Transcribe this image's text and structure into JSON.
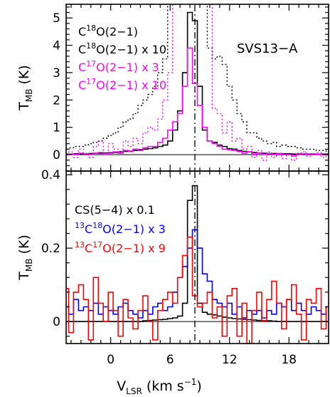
{
  "figure": {
    "xlabel": {
      "main": "V",
      "sub": "LSR",
      "units": " (km s",
      "sup": "−1",
      "close": ")"
    },
    "object_label": "SVS13−A",
    "x_ticks": [
      "0",
      "6",
      "12",
      "18"
    ]
  },
  "chart_data": [
    {
      "type": "line",
      "panel": "top",
      "ylabel": {
        "main": "T",
        "sub": "MB",
        "units": " (K)"
      },
      "xlim": [
        -4.5,
        22
      ],
      "ylim": [
        -0.6,
        5.5
      ],
      "y_ticks": [
        "0",
        "1",
        "2",
        "3",
        "4",
        "5"
      ],
      "reference_velocity": 8.5,
      "legend": [
        {
          "parts": [
            {
              "t": "C"
            },
            {
              "t": "18",
              "sup": true
            },
            {
              "t": "O(2−1)"
            }
          ],
          "color": "#000000"
        },
        {
          "parts": [
            {
              "t": "C"
            },
            {
              "t": "18",
              "sup": true
            },
            {
              "t": "O(2−1) x 10"
            }
          ],
          "color": "#000000"
        },
        {
          "parts": [
            {
              "t": "C"
            },
            {
              "t": "17",
              "sup": true
            },
            {
              "t": "O(2−1) x 3"
            }
          ],
          "color": "#ff00ff"
        },
        {
          "parts": [
            {
              "t": "C"
            },
            {
              "t": "17",
              "sup": true
            },
            {
              "t": "O(2−1) x 10"
            }
          ],
          "color": "#ff00ff"
        }
      ],
      "series": [
        {
          "name": "C18O(2-1)",
          "color": "#000000",
          "dash": "none",
          "step": 0.5,
          "x": [
            -4.5,
            -4,
            -3.5,
            -3,
            -2.5,
            -2,
            -1.5,
            -1,
            -0.5,
            0,
            0.5,
            1,
            1.5,
            2,
            2.5,
            3,
            3.5,
            4,
            4.5,
            5,
            5.5,
            6,
            6.5,
            7,
            7.5,
            8,
            8.5,
            9,
            9.5,
            10,
            10.5,
            11,
            11.5,
            12,
            12.5,
            13,
            13.5,
            14,
            14.5,
            15,
            15.5,
            16,
            16.5,
            17,
            17.5,
            18,
            18.5,
            19,
            19.5,
            20,
            20.5,
            21,
            21.5,
            22
          ],
          "y": [
            0.02,
            0.02,
            0.03,
            0.03,
            0.03,
            0.04,
            0.05,
            0.05,
            0.06,
            0.07,
            0.08,
            0.1,
            0.12,
            0.13,
            0.15,
            0.18,
            0.2,
            0.22,
            0.25,
            0.3,
            0.35,
            0.5,
            0.9,
            1.6,
            3.0,
            5.2,
            4.9,
            2.5,
            0.9,
            0.5,
            0.45,
            0.35,
            0.3,
            0.22,
            0.2,
            0.15,
            0.12,
            0.1,
            0.08,
            0.06,
            0.05,
            0.04,
            0.04,
            0.03,
            0.03,
            0.03,
            0.02,
            0.02,
            0.02,
            0.02,
            0.02,
            0.02,
            0.02,
            0.02
          ]
        },
        {
          "name": "C18O(2-1) x 10",
          "color": "#000000",
          "dash": "2 3",
          "step": 0.5,
          "x": [
            -4.5,
            -4,
            -3.5,
            -3,
            -2.5,
            -2,
            -1.5,
            -1,
            -0.5,
            0,
            0.5,
            1,
            1.5,
            2,
            2.5,
            3,
            3.5,
            4,
            4.5,
            5,
            5.5,
            6,
            6.5,
            7,
            7.5,
            8,
            8.5,
            9,
            9.5,
            10,
            10.5,
            11,
            11.5,
            12,
            12.5,
            13,
            13.5,
            14,
            14.5,
            15,
            15.5,
            16,
            16.5,
            17,
            17.5,
            18,
            18.5,
            19,
            19.5,
            20,
            20.5,
            21,
            21.5,
            22
          ],
          "y": [
            0.2,
            0.25,
            0.3,
            0.3,
            0.35,
            0.4,
            0.45,
            0.5,
            0.6,
            0.7,
            0.8,
            1.0,
            1.2,
            1.3,
            1.5,
            1.8,
            2.0,
            2.2,
            2.5,
            3.0,
            3.5,
            5.6,
            5.6,
            5.6,
            5.6,
            5.6,
            5.6,
            5.6,
            5.6,
            3.9,
            3.5,
            3.6,
            3.3,
            2.5,
            2.0,
            1.5,
            1.2,
            0.8,
            0.8,
            0.6,
            0.5,
            0.4,
            0.45,
            0.3,
            0.35,
            0.3,
            0.3,
            0.25,
            0.2,
            0.2,
            0.2,
            0.15,
            0.15,
            0.1
          ]
        },
        {
          "name": "C17O(2-1) x 3",
          "color": "#ff00ff",
          "dash": "none",
          "step": 0.5,
          "x": [
            -4.5,
            -4,
            -3.5,
            -3,
            -2.5,
            -2,
            -1.5,
            -1,
            -0.5,
            0,
            0.5,
            1,
            1.5,
            2,
            2.5,
            3,
            3.5,
            4,
            4.5,
            5,
            5.5,
            6,
            6.5,
            7,
            7.5,
            8,
            8.5,
            9,
            9.5,
            10,
            10.5,
            11,
            11.5,
            12,
            12.5,
            13,
            13.5,
            14,
            14.5,
            15,
            15.5,
            16,
            16.5,
            17,
            17.5,
            18,
            18.5,
            19,
            19.5,
            20,
            20.5,
            21,
            21.5,
            22
          ],
          "y": [
            0.0,
            0.02,
            0.0,
            0.05,
            0.03,
            0.0,
            0.05,
            0.08,
            0.0,
            0.05,
            0.1,
            0.05,
            0.15,
            0.12,
            0.2,
            0.15,
            0.25,
            0.3,
            0.3,
            0.45,
            0.6,
            0.9,
            1.2,
            1.5,
            2.5,
            3.9,
            2.6,
            1.8,
            1.0,
            0.5,
            0.4,
            0.3,
            0.2,
            0.18,
            0.15,
            0.12,
            0.05,
            0.1,
            0.02,
            0.05,
            0.0,
            0.03,
            0.0,
            0.02,
            0.0,
            0.0,
            -0.05,
            0.0,
            0.03,
            0.0,
            0.0,
            0.02,
            0.0,
            0.0
          ]
        },
        {
          "name": "C17O(2-1) x 10",
          "color": "#ff00ff",
          "dash": "2 3",
          "step": 0.5,
          "x": [
            -4.5,
            -4,
            -3.5,
            -3,
            -2.5,
            -2,
            -1.5,
            -1,
            -0.5,
            0,
            0.5,
            1,
            1.5,
            2,
            2.5,
            3,
            3.5,
            4,
            4.5,
            5,
            5.5,
            6,
            6.5,
            7,
            7.5,
            8,
            8.5,
            9,
            9.5,
            10,
            10.5,
            11,
            11.5,
            12,
            12.5,
            13,
            13.5,
            14,
            14.5,
            15,
            15.5,
            16,
            16.5,
            17,
            17.5,
            18,
            18.5,
            19,
            19.5,
            20,
            20.5,
            21,
            21.5,
            22
          ],
          "y": [
            0.0,
            0.1,
            -0.1,
            0.2,
            0.05,
            -0.1,
            0.3,
            0.5,
            0.0,
            0.4,
            0.2,
            0.1,
            0.5,
            0.3,
            0.6,
            0.4,
            0.8,
            1.0,
            0.9,
            1.3,
            2.0,
            3.0,
            5.6,
            5.6,
            5.6,
            5.6,
            5.6,
            5.6,
            5.6,
            5.6,
            1.7,
            1.5,
            0.8,
            1.2,
            0.5,
            0.6,
            0.2,
            0.3,
            -0.1,
            0.15,
            -0.2,
            0.1,
            -0.1,
            0.05,
            -0.15,
            0.0,
            -0.2,
            0.05,
            0.1,
            -0.05,
            0.0,
            0.08,
            -0.1,
            0.0
          ]
        }
      ]
    },
    {
      "type": "line",
      "panel": "bottom",
      "ylabel": {
        "main": "T",
        "sub": "MB",
        "units": " (K)"
      },
      "xlim": [
        -4.5,
        22
      ],
      "ylim": [
        -0.06,
        0.41
      ],
      "y_ticks": [
        "0",
        "0.2",
        "0.4"
      ],
      "reference_velocity": 8.5,
      "legend": [
        {
          "parts": [
            {
              "t": "CS(5−4) x 0.1"
            }
          ],
          "color": "#000000"
        },
        {
          "parts": [
            {
              "t": "13",
              "sup": true
            },
            {
              "t": "C"
            },
            {
              "t": "18",
              "sup": true
            },
            {
              "t": "O(2−1) x 3"
            }
          ],
          "color": "#0000ff"
        },
        {
          "parts": [
            {
              "t": "13",
              "sup": true
            },
            {
              "t": "C"
            },
            {
              "t": "17",
              "sup": true
            },
            {
              "t": "O(2−1) x 9"
            }
          ],
          "color": "#ff0000"
        }
      ],
      "series": [
        {
          "name": "CS(5-4) x 0.1",
          "color": "#000000",
          "dash": "none",
          "step": 0.5,
          "x": [
            -4.5,
            -4,
            -3.5,
            -3,
            -2.5,
            -2,
            -1.5,
            -1,
            -0.5,
            0,
            0.5,
            1,
            1.5,
            2,
            2.5,
            3,
            3.5,
            4,
            4.5,
            5,
            5.5,
            6,
            6.5,
            7,
            7.5,
            8,
            8.5,
            9,
            9.5,
            10,
            10.5,
            11,
            11.5,
            12,
            12.5,
            13,
            13.5,
            14,
            14.5,
            15,
            15.5,
            16,
            16.5,
            17,
            17.5,
            18,
            18.5,
            19,
            19.5,
            20,
            20.5,
            21,
            21.5,
            22
          ],
          "y": [
            0.0,
            0.0,
            0.0,
            0.0,
            0.0,
            0.0,
            0.0,
            0.0,
            0.0,
            0.0,
            0.0,
            0.0,
            0.0,
            0.0,
            0.0,
            0.0,
            0.002,
            0.003,
            0.004,
            0.005,
            0.006,
            0.008,
            0.01,
            0.015,
            0.05,
            0.33,
            0.37,
            0.05,
            0.025,
            0.02,
            0.018,
            0.015,
            0.012,
            0.01,
            0.008,
            0.007,
            0.006,
            0.005,
            0.004,
            0.003,
            0.002,
            0.002,
            0.001,
            0.0,
            0.0,
            0.0,
            0.0,
            0.0,
            0.0,
            0.0,
            0.0,
            0.0,
            0.0,
            0.0
          ]
        },
        {
          "name": "13C18O(2-1) x 3",
          "color": "#0000ff",
          "dash": "none",
          "step": 0.5,
          "x": [
            -4.5,
            -4,
            -3.5,
            -3,
            -2.5,
            -2,
            -1.5,
            -1,
            -0.5,
            0,
            0.5,
            1,
            1.5,
            2,
            2.5,
            3,
            3.5,
            4,
            4.5,
            5,
            5.5,
            6,
            6.5,
            7,
            7.5,
            8,
            8.5,
            9,
            9.5,
            10,
            10.5,
            11,
            11.5,
            12,
            12.5,
            13,
            13.5,
            14,
            14.5,
            15,
            15.5,
            16,
            16.5,
            17,
            17.5,
            18,
            18.5,
            19,
            19.5,
            20,
            20.5,
            21,
            21.5,
            22
          ],
          "y": [
            0.04,
            0.02,
            0.06,
            0.03,
            0.04,
            0.03,
            0.05,
            0.02,
            0.04,
            0.03,
            0.02,
            0.04,
            0.05,
            0.03,
            0.02,
            0.01,
            0.03,
            0.02,
            0.04,
            0.05,
            0.03,
            0.04,
            0.08,
            0.12,
            0.15,
            0.2,
            0.25,
            0.2,
            0.13,
            0.11,
            0.06,
            0.05,
            0.04,
            0.05,
            0.02,
            0.04,
            0.01,
            0.03,
            0.02,
            0.03,
            0.01,
            0.03,
            0.02,
            0.05,
            0.04,
            0.06,
            0.03,
            0.05,
            0.03,
            0.02,
            0.04,
            0.03,
            0.02,
            0.04
          ]
        },
        {
          "name": "13C17O(2-1) x 9",
          "color": "#ff0000",
          "dash": "none",
          "step": 0.5,
          "x": [
            -4.5,
            -4,
            -3.5,
            -3,
            -2.5,
            -2,
            -1.5,
            -1,
            -0.5,
            0,
            0.5,
            1,
            1.5,
            2,
            2.5,
            3,
            3.5,
            4,
            4.5,
            5,
            5.5,
            6,
            6.5,
            7,
            7.5,
            8,
            8.5,
            9,
            9.5,
            10,
            10.5,
            11,
            11.5,
            12,
            12.5,
            13,
            13.5,
            14,
            14.5,
            15,
            15.5,
            16,
            16.5,
            17,
            17.5,
            18,
            18.5,
            19,
            19.5,
            20,
            20.5,
            21,
            21.5,
            22
          ],
          "y": [
            0.09,
            -0.03,
            0.08,
            0.1,
            0.06,
            -0.05,
            0.12,
            0.05,
            0.0,
            0.08,
            0.03,
            -0.04,
            0.06,
            0.01,
            -0.02,
            0.03,
            0.07,
            0.0,
            -0.05,
            0.03,
            0.06,
            0.08,
            0.05,
            0.12,
            0.18,
            0.23,
            0.07,
            0.04,
            0.05,
            0.08,
            0.01,
            0.04,
            -0.04,
            0.07,
            0.09,
            -0.04,
            0.05,
            -0.06,
            0.03,
            0.08,
            0.0,
            0.06,
            0.11,
            0.05,
            -0.02,
            0.06,
            0.1,
            0.02,
            -0.05,
            0.06,
            0.05,
            0.09,
            -0.02,
            0.04
          ]
        }
      ]
    }
  ]
}
